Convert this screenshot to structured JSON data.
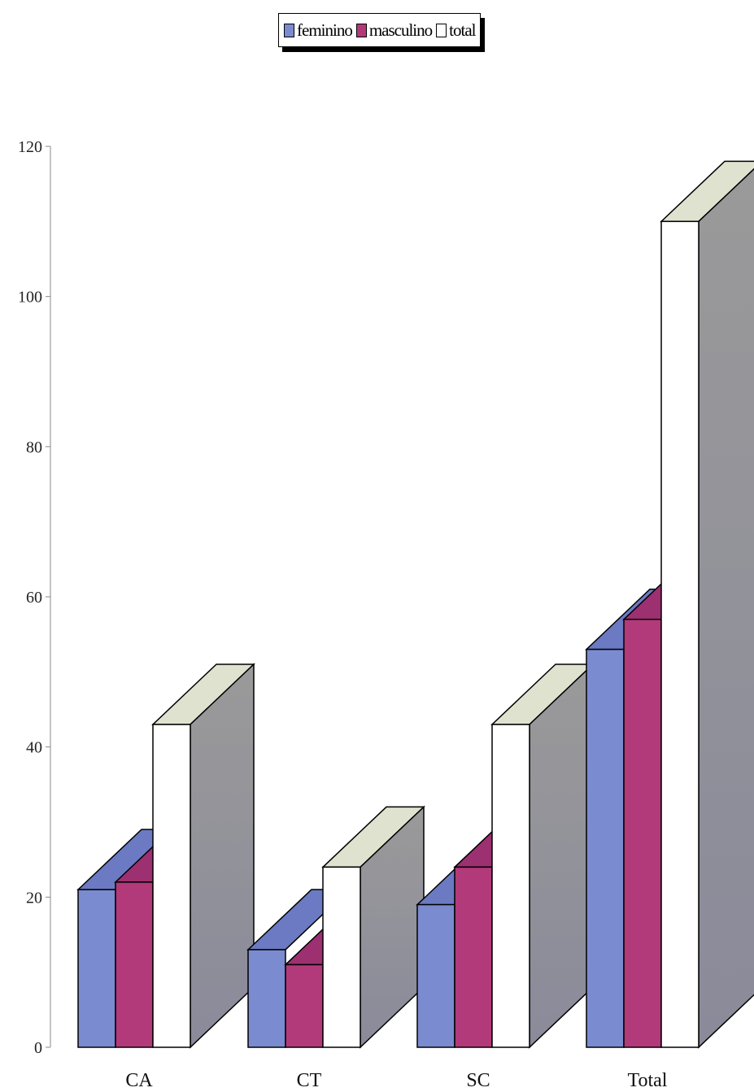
{
  "chart_data": {
    "type": "bar",
    "categories": [
      "CA",
      "CT",
      "SC",
      "Total"
    ],
    "series": [
      {
        "name": "feminino",
        "values": [
          21,
          13,
          19,
          53
        ],
        "color": "#7b8bd0"
      },
      {
        "name": "masculino",
        "values": [
          22,
          11,
          24,
          57
        ],
        "color": "#b23a7a"
      },
      {
        "name": "total",
        "values": [
          43,
          24,
          43,
          110
        ],
        "color": "#ffffff"
      }
    ],
    "ylim": [
      0,
      120
    ],
    "yticks": [
      "0",
      "20",
      "40",
      "60",
      "80",
      "100",
      "120"
    ],
    "legend": "top-center",
    "style": "3d-clustered"
  }
}
